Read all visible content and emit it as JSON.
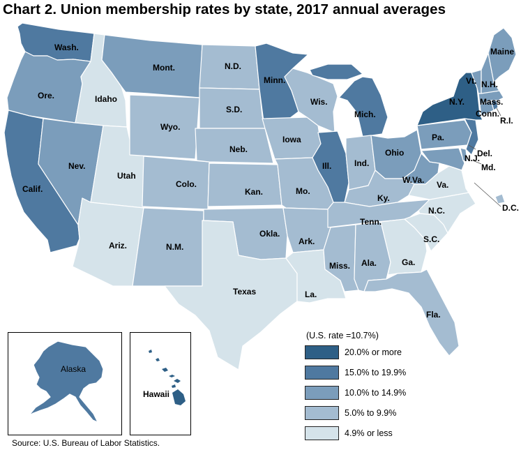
{
  "title": "Chart 2. Union membership rates by state, 2017 annual averages",
  "colors": {
    "c20": "#2e5f86",
    "c15": "#4f79a0",
    "c10": "#7b9dbb",
    "c5": "#a4bcd1",
    "c0": "#d5e3ea"
  },
  "legend": {
    "title": "(U.S. rate =10.7%)",
    "items": [
      {
        "label": "20.0% or more",
        "color_key": "c20"
      },
      {
        "label": "15.0% to 19.9%",
        "color_key": "c15"
      },
      {
        "label": "10.0% to 14.9%",
        "color_key": "c10"
      },
      {
        "label": "5.0% to 9.9%",
        "color_key": "c5"
      },
      {
        "label": "4.9% or less",
        "color_key": "c0"
      }
    ]
  },
  "states": [
    {
      "label": "Wash.",
      "category": "c15"
    },
    {
      "label": "Ore.",
      "category": "c10"
    },
    {
      "label": "Calif.",
      "category": "c15"
    },
    {
      "label": "Idaho",
      "category": "c0"
    },
    {
      "label": "Nev.",
      "category": "c10"
    },
    {
      "label": "Utah",
      "category": "c0"
    },
    {
      "label": "Ariz.",
      "category": "c0"
    },
    {
      "label": "Mont.",
      "category": "c10"
    },
    {
      "label": "Wyo.",
      "category": "c5"
    },
    {
      "label": "Colo.",
      "category": "c5"
    },
    {
      "label": "N.M.",
      "category": "c5"
    },
    {
      "label": "N.D.",
      "category": "c5"
    },
    {
      "label": "S.D.",
      "category": "c5"
    },
    {
      "label": "Neb.",
      "category": "c5"
    },
    {
      "label": "Kan.",
      "category": "c5"
    },
    {
      "label": "Okla.",
      "category": "c5"
    },
    {
      "label": "Texas",
      "category": "c0"
    },
    {
      "label": "Minn.",
      "category": "c15"
    },
    {
      "label": "Iowa",
      "category": "c5"
    },
    {
      "label": "Mo.",
      "category": "c5"
    },
    {
      "label": "Ark.",
      "category": "c5"
    },
    {
      "label": "La.",
      "category": "c0"
    },
    {
      "label": "Wis.",
      "category": "c5"
    },
    {
      "label": "Ill.",
      "category": "c15"
    },
    {
      "label": "Mich.",
      "category": "c15"
    },
    {
      "label": "Ind.",
      "category": "c5"
    },
    {
      "label": "Ohio",
      "category": "c10"
    },
    {
      "label": "Ky.",
      "category": "c5"
    },
    {
      "label": "Tenn.",
      "category": "c5"
    },
    {
      "label": "Miss.",
      "category": "c5"
    },
    {
      "label": "Ala.",
      "category": "c5"
    },
    {
      "label": "Ga.",
      "category": "c0"
    },
    {
      "label": "Fla.",
      "category": "c5"
    },
    {
      "label": "S.C.",
      "category": "c0"
    },
    {
      "label": "N.C.",
      "category": "c0"
    },
    {
      "label": "Va.",
      "category": "c0"
    },
    {
      "label": "W.Va.",
      "category": "c10"
    },
    {
      "label": "Md.",
      "category": "c10"
    },
    {
      "label": "Del.",
      "category": "c10"
    },
    {
      "label": "D.C.",
      "category": "c5"
    },
    {
      "label": "Pa.",
      "category": "c10"
    },
    {
      "label": "N.J.",
      "category": "c15"
    },
    {
      "label": "N.Y.",
      "category": "c20"
    },
    {
      "label": "Conn.",
      "category": "c10"
    },
    {
      "label": "R.I.",
      "category": "c15"
    },
    {
      "label": "Mass.",
      "category": "c10"
    },
    {
      "label": "Vt.",
      "category": "c10"
    },
    {
      "label": "N.H.",
      "category": "c10"
    },
    {
      "label": "Maine",
      "category": "c10"
    },
    {
      "label": "Alaska",
      "category": "c15"
    },
    {
      "label": "Hawaii",
      "category": "c20"
    }
  ],
  "source": "Source: U.S. Bureau of Labor Statistics."
}
